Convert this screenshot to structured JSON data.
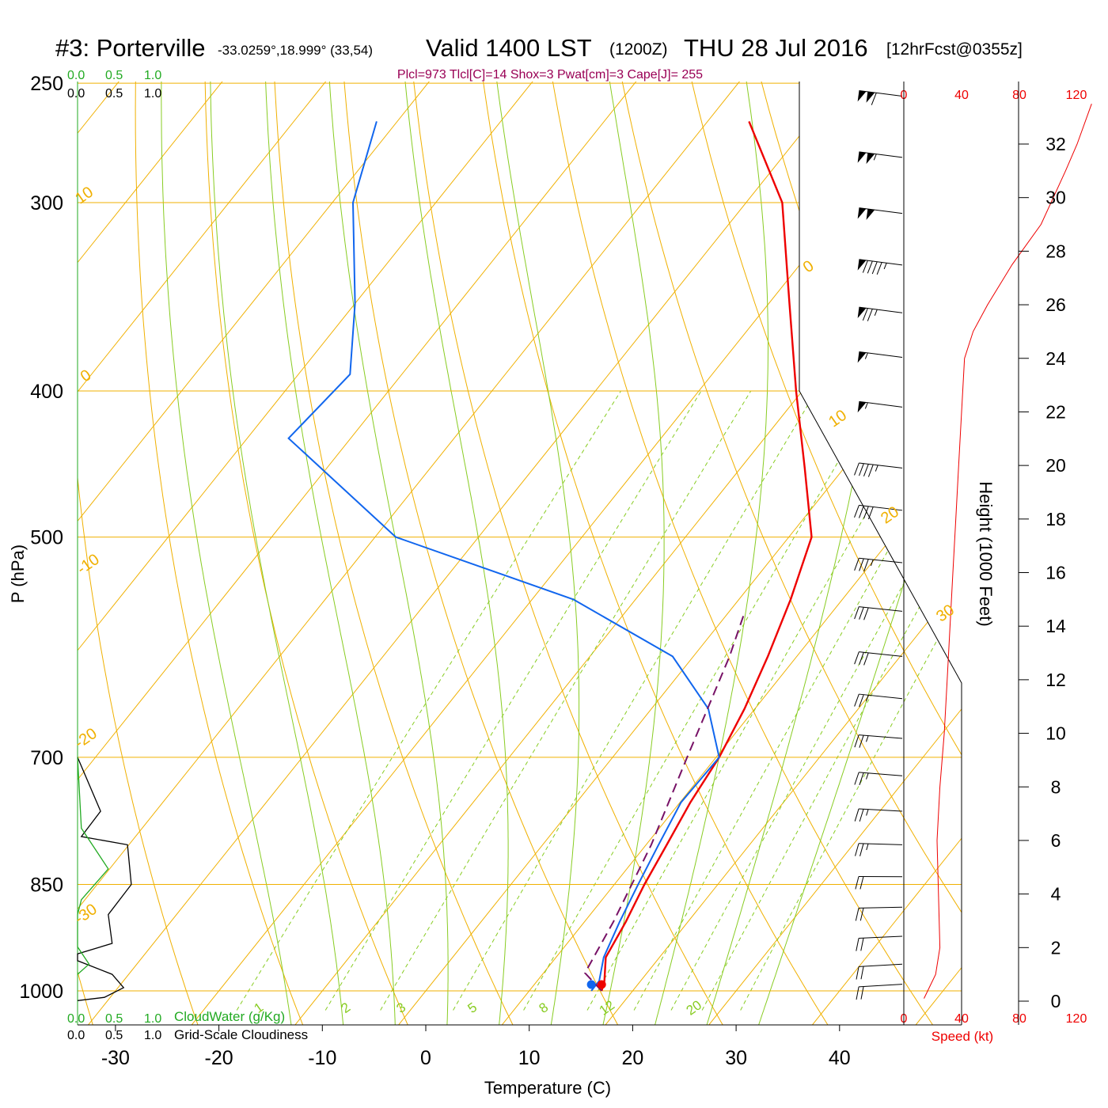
{
  "header": {
    "title_prefix": "#3: Porterville",
    "coords": "-33.0259°,18.999° (33,54)",
    "valid": "Valid 1400 LST",
    "zulu": "(1200Z)",
    "date": "THU 28 Jul 2016",
    "forecast": "[12hrFcst@0355z]",
    "indices": "Plcl=973 Tlcl[C]=14 Shox=3 Pwat[cm]=3 Cape[J]= 255"
  },
  "colors": {
    "isotherm": "#f0b000",
    "dry_adiabat": "#88cc22",
    "moist_adiabat": "#88cc22",
    "mixing_ratio": "#88cc22",
    "temperature": "#ee0000",
    "dewpoint": "#1166ee",
    "parcel": "#771166",
    "cloud_water": "#22aa22",
    "cloudiness": "#000000",
    "speed": "#ee0000",
    "indices": "#990055"
  },
  "left_scale": {
    "top_green": [
      "0.0",
      "0.5",
      "1.0"
    ],
    "top_black": [
      "0.0",
      "0.5",
      "1.0"
    ],
    "bottom_green": [
      "0.0",
      "0.5",
      "1.0"
    ],
    "bottom_black": [
      "0.0",
      "0.5",
      "1.0"
    ],
    "cloudwater_label": "CloudWater (g/Kg)",
    "cloudiness_label": "Grid-Scale Cloudiness"
  },
  "wind_scale": {
    "top_ticks": [
      "0",
      "40",
      "80",
      "120"
    ],
    "bottom_ticks": [
      "0",
      "40",
      "80",
      "120"
    ],
    "label": "Speed (kt)"
  },
  "height_axis": {
    "label": "Height (1000 Feet)",
    "ticks": [
      "0",
      "2",
      "4",
      "6",
      "8",
      "10",
      "12",
      "14",
      "16",
      "18",
      "20",
      "22",
      "24",
      "26",
      "28",
      "30",
      "32"
    ]
  },
  "chart_data": {
    "type": "line",
    "subtype": "skew-T log-p sounding",
    "xlabel": "Temperature (C)",
    "ylabel": "P (hPa)",
    "x_ticks": [
      "-30",
      "-20",
      "-10",
      "0",
      "10",
      "20",
      "30",
      "40"
    ],
    "y_ticks": [
      "250",
      "300",
      "400",
      "500",
      "700",
      "850",
      "1000"
    ],
    "isotherm_labels": [
      "10",
      "0",
      "-10",
      "-20",
      "-30",
      "0",
      "10",
      "20",
      "30"
    ],
    "mixing_ratio_labels": [
      "1",
      "2",
      "3",
      "5",
      "8",
      "12",
      "20"
    ],
    "series": [
      {
        "name": "Temperature",
        "points": [
          [
            17.0,
            1000
          ],
          [
            16.5,
            985
          ],
          [
            14.8,
            950
          ],
          [
            14.0,
            900
          ],
          [
            12.9,
            850
          ],
          [
            12.0,
            800
          ],
          [
            11.0,
            750
          ],
          [
            10.3,
            700
          ],
          [
            9.0,
            650
          ],
          [
            7.2,
            600
          ],
          [
            5.0,
            550
          ],
          [
            2.2,
            500
          ],
          [
            -3.8,
            450
          ],
          [
            -10.6,
            400
          ],
          [
            -18.0,
            350
          ],
          [
            -26.5,
            300
          ],
          [
            -36.0,
            265
          ]
        ]
      },
      {
        "name": "Dewpoint",
        "points": [
          [
            16.0,
            1000
          ],
          [
            16.0,
            985
          ],
          [
            14.6,
            950
          ],
          [
            13.4,
            900
          ],
          [
            12.3,
            850
          ],
          [
            11.2,
            800
          ],
          [
            10.1,
            750
          ],
          [
            10.3,
            700
          ],
          [
            5.5,
            650
          ],
          [
            -2.0,
            600
          ],
          [
            -16.0,
            550
          ],
          [
            -38.0,
            500
          ],
          [
            -56.0,
            430
          ],
          [
            -55.0,
            390
          ],
          [
            -60.0,
            350
          ],
          [
            -68.0,
            300
          ],
          [
            -72.0,
            265
          ]
        ]
      },
      {
        "name": "Parcel",
        "points": [
          [
            17.0,
            1000
          ],
          [
            14.0,
            973
          ],
          [
            12.8,
            900
          ],
          [
            10.5,
            800
          ],
          [
            7.2,
            700
          ],
          [
            3.5,
            600
          ],
          [
            1.5,
            560
          ]
        ]
      }
    ],
    "cloud_water": [
      [
        0.0,
        700
      ],
      [
        0.05,
        780
      ],
      [
        0.4,
        830
      ],
      [
        0.05,
        870
      ],
      [
        0.0,
        890
      ],
      [
        0.0,
        935
      ],
      [
        0.15,
        960
      ],
      [
        0.0,
        975
      ]
    ],
    "cloudiness": [
      [
        0.0,
        700
      ],
      [
        0.3,
        760
      ],
      [
        0.05,
        790
      ],
      [
        0.65,
        800
      ],
      [
        0.7,
        850
      ],
      [
        0.4,
        890
      ],
      [
        0.45,
        930
      ],
      [
        0.0,
        945
      ],
      [
        0.0,
        955
      ],
      [
        0.45,
        975
      ],
      [
        0.6,
        995
      ],
      [
        0.35,
        1010
      ],
      [
        0.0,
        1015
      ]
    ],
    "wind_barbs": [
      {
        "p": 255,
        "dir": 280,
        "spd": 110
      },
      {
        "p": 280,
        "dir": 280,
        "spd": 105
      },
      {
        "p": 305,
        "dir": 280,
        "spd": 100
      },
      {
        "p": 330,
        "dir": 280,
        "spd": 95
      },
      {
        "p": 355,
        "dir": 280,
        "spd": 75
      },
      {
        "p": 380,
        "dir": 280,
        "spd": 55
      },
      {
        "p": 410,
        "dir": 280,
        "spd": 55
      },
      {
        "p": 450,
        "dir": 285,
        "spd": 45
      },
      {
        "p": 480,
        "dir": 285,
        "spd": 40
      },
      {
        "p": 520,
        "dir": 290,
        "spd": 35
      },
      {
        "p": 560,
        "dir": 290,
        "spd": 30
      },
      {
        "p": 600,
        "dir": 290,
        "spd": 30
      },
      {
        "p": 640,
        "dir": 290,
        "spd": 25
      },
      {
        "p": 680,
        "dir": 300,
        "spd": 25
      },
      {
        "p": 720,
        "dir": 300,
        "spd": 25
      },
      {
        "p": 760,
        "dir": 310,
        "spd": 25
      },
      {
        "p": 800,
        "dir": 320,
        "spd": 25
      },
      {
        "p": 840,
        "dir": 330,
        "spd": 20
      },
      {
        "p": 880,
        "dir": 340,
        "spd": 20
      },
      {
        "p": 920,
        "dir": 350,
        "spd": 20
      },
      {
        "p": 960,
        "dir": 355,
        "spd": 20
      },
      {
        "p": 990,
        "dir": 355,
        "spd": 20
      }
    ],
    "speed_profile_kt": [
      [
        14,
        0.1
      ],
      [
        22,
        1.0
      ],
      [
        25,
        2.0
      ],
      [
        24,
        4.0
      ],
      [
        23,
        6.0
      ],
      [
        25,
        8.0
      ],
      [
        28,
        10.0
      ],
      [
        30,
        12.0
      ],
      [
        32,
        14.0
      ],
      [
        34,
        16.0
      ],
      [
        36,
        18.0
      ],
      [
        38,
        20.0
      ],
      [
        40,
        22.0
      ],
      [
        42,
        24.0
      ],
      [
        48,
        25.0
      ],
      [
        58,
        26.0
      ],
      [
        75,
        27.5
      ],
      [
        95,
        29.0
      ],
      [
        112,
        31.0
      ],
      [
        120,
        32.0
      ],
      [
        130,
        33.5
      ]
    ]
  }
}
